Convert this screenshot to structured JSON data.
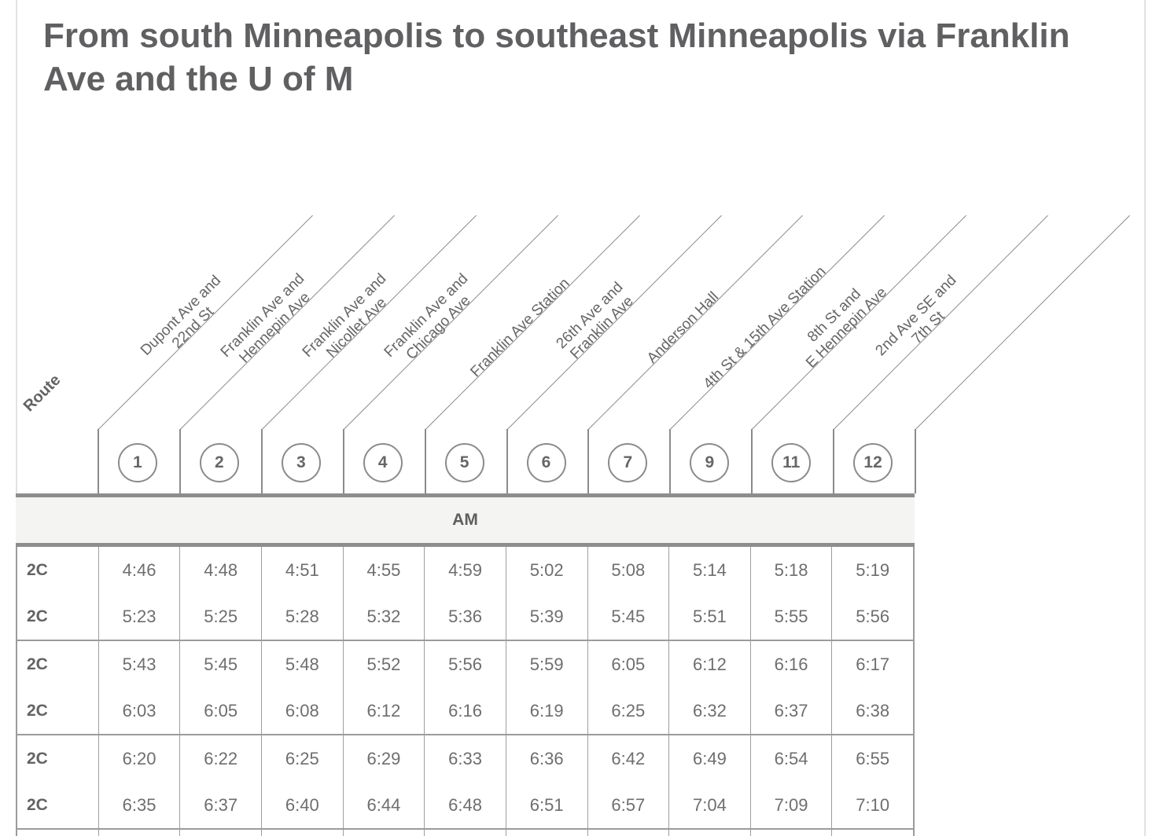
{
  "title": "From south Minneapolis to southeast Minneapolis via Franklin Ave and the U of M",
  "header": {
    "route_label": "Route",
    "period_label": "AM",
    "stops": [
      {
        "number": "1",
        "name_lines": [
          "Dupont Ave and",
          "22nd St"
        ]
      },
      {
        "number": "2",
        "name_lines": [
          "Franklin Ave and",
          "Hennepin Ave"
        ]
      },
      {
        "number": "3",
        "name_lines": [
          "Franklin Ave and",
          "Nicollet Ave"
        ]
      },
      {
        "number": "4",
        "name_lines": [
          "Franklin Ave and",
          "Chicago Ave"
        ]
      },
      {
        "number": "5",
        "name_lines": [
          "Franklin Ave Station"
        ]
      },
      {
        "number": "6",
        "name_lines": [
          "26th Ave and",
          "Franklin Ave"
        ]
      },
      {
        "number": "7",
        "name_lines": [
          "Anderson Hall"
        ]
      },
      {
        "number": "9",
        "name_lines": [
          "4th St & 15th Ave Station"
        ]
      },
      {
        "number": "11",
        "name_lines": [
          "8th St and",
          "E Hennepin Ave"
        ]
      },
      {
        "number": "12",
        "name_lines": [
          "2nd Ave SE and",
          "7th St"
        ]
      }
    ]
  },
  "schedule": {
    "groups": [
      {
        "rows": [
          {
            "route": "2C",
            "times": [
              "4:46",
              "4:48",
              "4:51",
              "4:55",
              "4:59",
              "5:02",
              "5:08",
              "5:14",
              "5:18",
              "5:19"
            ]
          },
          {
            "route": "2C",
            "times": [
              "5:23",
              "5:25",
              "5:28",
              "5:32",
              "5:36",
              "5:39",
              "5:45",
              "5:51",
              "5:55",
              "5:56"
            ]
          }
        ]
      },
      {
        "rows": [
          {
            "route": "2C",
            "times": [
              "5:43",
              "5:45",
              "5:48",
              "5:52",
              "5:56",
              "5:59",
              "6:05",
              "6:12",
              "6:16",
              "6:17"
            ]
          },
          {
            "route": "2C",
            "times": [
              "6:03",
              "6:05",
              "6:08",
              "6:12",
              "6:16",
              "6:19",
              "6:25",
              "6:32",
              "6:37",
              "6:38"
            ]
          }
        ]
      },
      {
        "rows": [
          {
            "route": "2C",
            "times": [
              "6:20",
              "6:22",
              "6:25",
              "6:29",
              "6:33",
              "6:36",
              "6:42",
              "6:49",
              "6:54",
              "6:55"
            ]
          },
          {
            "route": "2C",
            "times": [
              "6:35",
              "6:37",
              "6:40",
              "6:44",
              "6:48",
              "6:51",
              "6:57",
              "7:04",
              "7:09",
              "7:10"
            ]
          }
        ]
      }
    ]
  },
  "colors": {
    "title_text": "#606062",
    "body_text": "#6e6e6e",
    "heavy_border": "#8d8d8d",
    "thin_border": "#9e9e9e",
    "diagonal_line": "#8b8b8b",
    "am_band_bg": "#f4f4f2",
    "page_rule": "#e2e2df"
  }
}
